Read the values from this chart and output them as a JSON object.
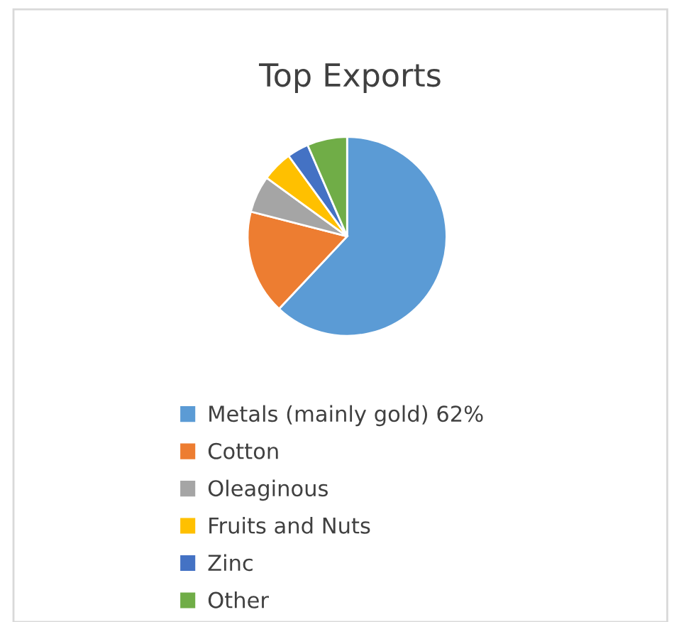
{
  "chart_data": {
    "type": "pie",
    "title": "Top Exports",
    "categories": [
      "Metals (mainly gold) 62%",
      "Cotton",
      "Oleaginous",
      "Fruits and Nuts",
      "Zinc",
      "Other"
    ],
    "values": [
      62,
      17,
      6,
      5,
      3.5,
      6.5
    ],
    "colors": [
      "#5b9bd5",
      "#ed7d31",
      "#a5a5a5",
      "#ffc000",
      "#4472c4",
      "#70ad47"
    ],
    "legend": "bottom"
  }
}
